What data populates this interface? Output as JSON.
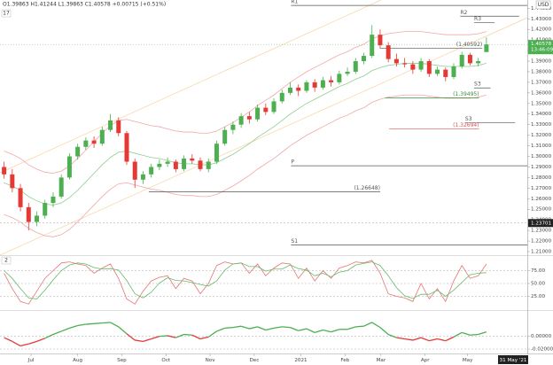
{
  "chart_data": [
    {
      "type": "candlestick",
      "header": "O1.39863 H1.41244 L1.39863 C1.40578 +0.00715 (+0.51%)",
      "pane_label": "17",
      "currency": "USD",
      "up_color": "#4caf50",
      "down_color": "#e53935",
      "xlim": [
        -0.5,
        64
      ],
      "xticks": [
        {
          "value": 3.3,
          "label": "Jul"
        },
        {
          "value": 9.0,
          "label": "Aug"
        },
        {
          "value": 14.4,
          "label": "Sep"
        },
        {
          "value": 19.8,
          "label": "Oct"
        },
        {
          "value": 25.2,
          "label": "Nov"
        },
        {
          "value": 30.6,
          "label": "Dec"
        },
        {
          "value": 36.3,
          "label": "2021"
        },
        {
          "value": 41.7,
          "label": "Feb"
        },
        {
          "value": 46.1,
          "label": "Mar"
        },
        {
          "value": 51.5,
          "label": "Apr"
        },
        {
          "value": 56.7,
          "label": "May"
        }
      ],
      "ylim": [
        1.2075,
        1.4478
      ],
      "yticks": [
        {
          "value": 1.21,
          "label": "1.21000"
        },
        {
          "value": 1.22,
          "label": "1.22000"
        },
        {
          "value": 1.23,
          "label": "1.23000"
        },
        {
          "value": 1.24,
          "label": "1.24000"
        },
        {
          "value": 1.25,
          "label": "1.25000"
        },
        {
          "value": 1.26,
          "label": "1.26000"
        },
        {
          "value": 1.27,
          "label": "1.27000"
        },
        {
          "value": 1.28,
          "label": "1.28000"
        },
        {
          "value": 1.29,
          "label": "1.29000"
        },
        {
          "value": 1.3,
          "label": "1.30000"
        },
        {
          "value": 1.31,
          "label": "1.31000"
        },
        {
          "value": 1.32,
          "label": "1.32000"
        },
        {
          "value": 1.33,
          "label": "1.33000"
        },
        {
          "value": 1.34,
          "label": "1.34000"
        },
        {
          "value": 1.35,
          "label": "1.35000"
        },
        {
          "value": 1.36,
          "label": "1.36000"
        },
        {
          "value": 1.37,
          "label": "1.37000"
        },
        {
          "value": 1.38,
          "label": "1.38000"
        },
        {
          "value": 1.39,
          "label": "1.39000"
        },
        {
          "value": 1.4,
          "label": "1.40000"
        },
        {
          "value": 1.41,
          "label": "1.41000"
        },
        {
          "value": 1.42,
          "label": "1.42000"
        },
        {
          "value": 1.43,
          "label": "1.43000"
        },
        {
          "value": 1.44,
          "label": "1.44000"
        }
      ],
      "grid": false,
      "open": [
        1.29,
        1.283,
        1.27,
        1.252,
        1.238,
        1.244,
        1.256,
        1.262,
        1.28,
        1.3,
        1.309,
        1.315,
        1.312,
        1.325,
        1.334,
        1.322,
        1.295,
        1.278,
        1.283,
        1.29,
        1.293,
        1.295,
        1.288,
        1.298,
        1.296,
        1.288,
        1.295,
        1.312,
        1.325,
        1.33,
        1.338,
        1.335,
        1.346,
        1.342,
        1.352,
        1.36,
        1.365,
        1.362,
        1.37,
        1.365,
        1.372,
        1.37,
        1.378,
        1.38,
        1.39,
        1.395,
        1.415,
        1.405,
        1.392,
        1.388,
        1.387,
        1.382,
        1.39,
        1.378,
        1.382,
        1.375,
        1.385,
        1.396,
        1.388,
        1.39863
      ],
      "high": [
        1.295,
        1.288,
        1.274,
        1.256,
        1.248,
        1.259,
        1.266,
        1.283,
        1.303,
        1.312,
        1.318,
        1.319,
        1.328,
        1.34,
        1.337,
        1.324,
        1.298,
        1.286,
        1.293,
        1.297,
        1.299,
        1.297,
        1.301,
        1.302,
        1.299,
        1.298,
        1.315,
        1.328,
        1.333,
        1.341,
        1.342,
        1.349,
        1.35,
        1.355,
        1.363,
        1.37,
        1.368,
        1.372,
        1.373,
        1.375,
        1.376,
        1.381,
        1.384,
        1.393,
        1.398,
        1.424,
        1.42,
        1.408,
        1.397,
        1.393,
        1.39,
        1.393,
        1.392,
        1.385,
        1.384,
        1.388,
        1.399,
        1.398,
        1.393,
        1.41244
      ],
      "low": [
        1.279,
        1.266,
        1.248,
        1.23,
        1.234,
        1.241,
        1.252,
        1.26,
        1.278,
        1.297,
        1.306,
        1.308,
        1.31,
        1.323,
        1.319,
        1.292,
        1.27,
        1.274,
        1.28,
        1.287,
        1.29,
        1.285,
        1.286,
        1.293,
        1.286,
        1.285,
        1.293,
        1.31,
        1.321,
        1.327,
        1.331,
        1.333,
        1.339,
        1.34,
        1.35,
        1.358,
        1.357,
        1.36,
        1.361,
        1.363,
        1.366,
        1.368,
        1.376,
        1.378,
        1.387,
        1.393,
        1.402,
        1.389,
        1.385,
        1.384,
        1.378,
        1.38,
        1.375,
        1.376,
        1.371,
        1.373,
        1.383,
        1.386,
        1.385,
        1.39863
      ],
      "close": [
        1.283,
        1.27,
        1.252,
        1.238,
        1.244,
        1.256,
        1.262,
        1.28,
        1.3,
        1.309,
        1.315,
        1.312,
        1.325,
        1.334,
        1.322,
        1.295,
        1.278,
        1.283,
        1.29,
        1.293,
        1.295,
        1.288,
        1.298,
        1.296,
        1.288,
        1.295,
        1.312,
        1.325,
        1.33,
        1.338,
        1.335,
        1.346,
        1.342,
        1.352,
        1.36,
        1.365,
        1.362,
        1.37,
        1.365,
        1.372,
        1.37,
        1.378,
        1.38,
        1.39,
        1.395,
        1.415,
        1.405,
        1.392,
        1.388,
        1.387,
        1.382,
        1.39,
        1.378,
        1.382,
        1.375,
        1.385,
        1.396,
        1.388,
        1.39,
        1.40578
      ],
      "series": [
        {
          "color": "#f2a7a7",
          "values": [
            1.305,
            1.302,
            1.298,
            1.292,
            1.288,
            1.285,
            1.284,
            1.286,
            1.291,
            1.298,
            1.306,
            1.314,
            1.322,
            1.329,
            1.334,
            1.335,
            1.333,
            1.331,
            1.329,
            1.328,
            1.326,
            1.324,
            1.323,
            1.323,
            1.322,
            1.322,
            1.324,
            1.328,
            1.332,
            1.337,
            1.342,
            1.348,
            1.353,
            1.358,
            1.364,
            1.37,
            1.375,
            1.38,
            1.384,
            1.388,
            1.392,
            1.396,
            1.399,
            1.403,
            1.406,
            1.411,
            1.414,
            1.416,
            1.417,
            1.418,
            1.418,
            1.418,
            1.417,
            1.416,
            1.415,
            1.415,
            1.415,
            1.415,
            1.416,
            1.418
          ]
        },
        {
          "color": "#8fcf8f",
          "values": [
            1.275,
            1.272,
            1.268,
            1.262,
            1.258,
            1.255,
            1.254,
            1.256,
            1.261,
            1.268,
            1.276,
            1.284,
            1.292,
            1.299,
            1.304,
            1.305,
            1.303,
            1.301,
            1.299,
            1.298,
            1.296,
            1.294,
            1.293,
            1.293,
            1.292,
            1.292,
            1.294,
            1.298,
            1.302,
            1.307,
            1.312,
            1.318,
            1.323,
            1.328,
            1.334,
            1.34,
            1.345,
            1.35,
            1.354,
            1.358,
            1.362,
            1.366,
            1.369,
            1.373,
            1.376,
            1.381,
            1.384,
            1.386,
            1.387,
            1.388,
            1.388,
            1.388,
            1.387,
            1.386,
            1.385,
            1.385,
            1.385,
            1.385,
            1.386,
            1.388
          ]
        },
        {
          "color": "#f2a7a7",
          "values": [
            1.245,
            1.242,
            1.238,
            1.232,
            1.228,
            1.225,
            1.224,
            1.226,
            1.231,
            1.238,
            1.246,
            1.254,
            1.262,
            1.269,
            1.274,
            1.275,
            1.273,
            1.271,
            1.269,
            1.268,
            1.266,
            1.264,
            1.263,
            1.263,
            1.262,
            1.262,
            1.264,
            1.268,
            1.272,
            1.277,
            1.282,
            1.288,
            1.293,
            1.298,
            1.304,
            1.31,
            1.315,
            1.32,
            1.324,
            1.328,
            1.332,
            1.336,
            1.339,
            1.343,
            1.346,
            1.351,
            1.354,
            1.356,
            1.357,
            1.358,
            1.358,
            1.358,
            1.357,
            1.356,
            1.355,
            1.355,
            1.355,
            1.355,
            1.356,
            1.358
          ]
        }
      ],
      "levels": [
        {
          "label": "R1",
          "value": 1.4427,
          "from": 35.1,
          "to": 64,
          "color": "#555555",
          "label_at": "start"
        },
        {
          "label": "R2",
          "value": 1.4325,
          "from": 55.8,
          "to": 63,
          "color": "#555555",
          "label_at": "start"
        },
        {
          "label": "R3",
          "value": 1.4266,
          "from": 57.5,
          "to": 60,
          "color": "#555555",
          "label_at": "start"
        },
        {
          "label": "(1.40592)",
          "value": 1.402,
          "from": 46,
          "to": 58.5,
          "color": "#555555",
          "label_at": "end"
        },
        {
          "label": "S3",
          "value": 1.3647,
          "from": 57.5,
          "to": 59.5,
          "color": "#555555",
          "label_at": "start"
        },
        {
          "label": "(1.39495)",
          "value": 1.3554,
          "from": 46.6,
          "to": 58.1,
          "color": "#3a8f3a",
          "label_at": "end"
        },
        {
          "label": "S3",
          "value": 1.3317,
          "from": 56.4,
          "to": 62.5,
          "color": "#555555",
          "label_at": "start"
        },
        {
          "label": "(1.32694)",
          "value": 1.3258,
          "from": 47.1,
          "to": 58.1,
          "color": "#e05050",
          "label_at": "end"
        },
        {
          "label": "P",
          "value": 1.2911,
          "from": 35.1,
          "to": 64,
          "color": "#555555",
          "label_at": "start"
        },
        {
          "label": "(1.26648)",
          "value": 1.2664,
          "from": 17.7,
          "to": 46,
          "color": "#555555",
          "label_at": "end"
        },
        {
          "label": "S1",
          "value": 1.2164,
          "from": 35.1,
          "to": 64,
          "color": "#555555",
          "label_at": "start"
        }
      ],
      "last_price": {
        "value": 1.40578,
        "label": "1.40578"
      },
      "countdown": "13:46:09",
      "crosshair_price": {
        "value": 1.23701,
        "label": "1.23701"
      },
      "crosshair_date": "31 May '21"
    },
    {
      "type": "line",
      "pane_label": "2",
      "ylim": [
        0,
        100
      ],
      "yticks": [
        {
          "value": 75,
          "label": "75.00"
        },
        {
          "value": 50,
          "label": "50.00"
        },
        {
          "value": 25,
          "label": "25.00"
        }
      ],
      "grid": true,
      "series": [
        {
          "color": "#e57373",
          "values": [
            70,
            40,
            15,
            10,
            35,
            60,
            75,
            90,
            92,
            88,
            85,
            70,
            80,
            88,
            60,
            20,
            10,
            35,
            55,
            62,
            65,
            40,
            60,
            55,
            30,
            50,
            85,
            92,
            88,
            90,
            70,
            88,
            65,
            80,
            90,
            88,
            60,
            80,
            55,
            75,
            60,
            80,
            85,
            92,
            90,
            95,
            70,
            30,
            25,
            22,
            15,
            50,
            20,
            40,
            15,
            55,
            85,
            60,
            65,
            88
          ]
        },
        {
          "color": "#66bb6a",
          "values": [
            75,
            60,
            40,
            22,
            20,
            37,
            57,
            75,
            86,
            90,
            88,
            81,
            78,
            79,
            76,
            56,
            30,
            22,
            33,
            51,
            61,
            56,
            55,
            52,
            48,
            45,
            55,
            76,
            88,
            90,
            83,
            83,
            74,
            78,
            78,
            86,
            79,
            76,
            65,
            70,
            63,
            72,
            75,
            86,
            89,
            92,
            85,
            65,
            42,
            26,
            21,
            29,
            29,
            37,
            25,
            37,
            52,
            67,
            70,
            71
          ]
        }
      ]
    },
    {
      "type": "signed_line",
      "ylim": [
        -0.027,
        0.0386
      ],
      "yticks": [
        {
          "value": 0,
          "label": "0.00000"
        },
        {
          "value": -0.02,
          "label": "-0.02000"
        }
      ],
      "grid": true,
      "positive_color": "#4caf50",
      "negative_color": "#e53935",
      "values": [
        -0.002,
        -0.008,
        -0.015,
        -0.012,
        -0.008,
        -0.003,
        0.003,
        0.008,
        0.013,
        0.017,
        0.019,
        0.02,
        0.021,
        0.022,
        0.015,
        0.004,
        -0.006,
        -0.008,
        -0.004,
        0.0,
        0.001,
        -0.002,
        0.003,
        0.002,
        -0.004,
        -0.001,
        0.008,
        0.013,
        0.014,
        0.016,
        0.012,
        0.015,
        0.01,
        0.013,
        0.015,
        0.014,
        0.009,
        0.012,
        0.006,
        0.01,
        0.007,
        0.011,
        0.011,
        0.015,
        0.016,
        0.022,
        0.014,
        0.003,
        -0.002,
        -0.004,
        -0.006,
        -0.002,
        -0.007,
        -0.004,
        -0.007,
        -0.001,
        0.006,
        0.002,
        0.003,
        0.007
      ]
    }
  ]
}
